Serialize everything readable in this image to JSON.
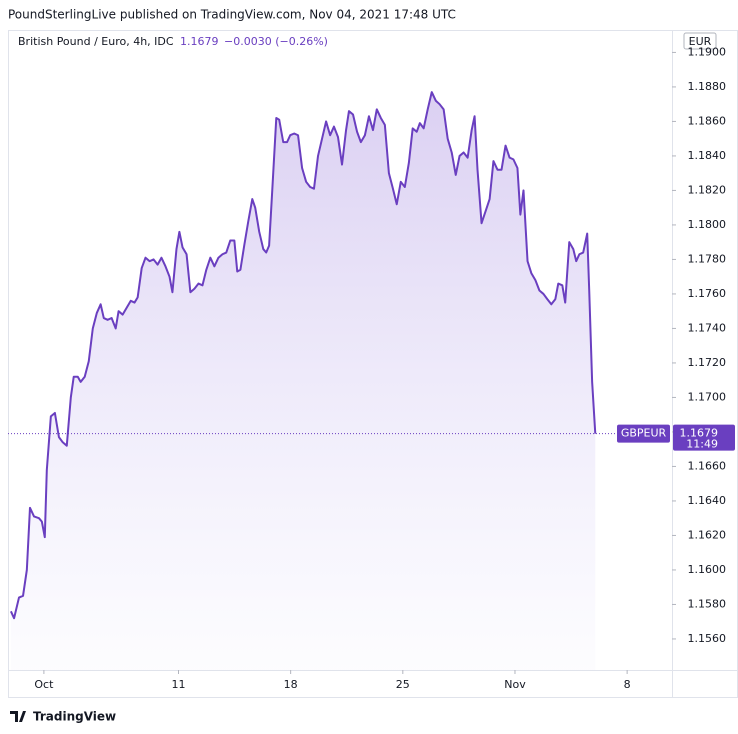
{
  "header": {
    "published": "PoundSterlingLive published on TradingView.com, Nov 04, 2021 17:48 UTC"
  },
  "chart_data": {
    "type": "line",
    "title": "British Pound / Euro, 4h, IDC",
    "change_label": "−0.0030 (−0.26%)",
    "y_label": "EUR",
    "countdown": "11:49",
    "x": [
      -1.47,
      -1.33,
      -1.11,
      -0.93,
      -0.76,
      -0.62,
      -0.44,
      -0.22,
      -0.09,
      0.04,
      0.13,
      0.31,
      0.49,
      0.67,
      0.84,
      1.02,
      1.2,
      1.33,
      1.51,
      1.64,
      1.82,
      2.0,
      2.18,
      2.36,
      2.53,
      2.67,
      2.84,
      3.02,
      3.2,
      3.33,
      3.51,
      3.69,
      3.87,
      4.04,
      4.18,
      4.36,
      4.53,
      4.71,
      4.89,
      5.07,
      5.24,
      5.42,
      5.6,
      5.73,
      5.91,
      6.04,
      6.18,
      6.36,
      6.53,
      6.71,
      6.89,
      7.07,
      7.24,
      7.42,
      7.6,
      7.78,
      7.96,
      8.13,
      8.31,
      8.49,
      8.62,
      8.76,
      8.93,
      9.11,
      9.29,
      9.42,
      9.6,
      9.78,
      9.91,
      10.04,
      10.18,
      10.36,
      10.49,
      10.67,
      10.84,
      10.98,
      11.16,
      11.33,
      11.51,
      11.69,
      11.87,
      12.04,
      12.22,
      12.4,
      12.58,
      12.76,
      12.93,
      13.11,
      13.29,
      13.47,
      13.6,
      13.78,
      13.96,
      14.13,
      14.31,
      14.49,
      14.67,
      14.84,
      15.02,
      15.2,
      15.38,
      15.56,
      15.73,
      15.91,
      16.09,
      16.27,
      16.44,
      16.62,
      16.76,
      16.93,
      17.11,
      17.29,
      17.47,
      17.64,
      17.82,
      18.0,
      18.18,
      18.36,
      18.53,
      18.71,
      18.89,
      19.07,
      19.2,
      19.33,
      19.51,
      19.69,
      19.87,
      20.04,
      20.22,
      20.4,
      20.58,
      20.76,
      20.93,
      21.11,
      21.24,
      21.38,
      21.56,
      21.73,
      21.91,
      22.09,
      22.27,
      22.44,
      22.62,
      22.8,
      22.93,
      23.11,
      23.24,
      23.42,
      23.6,
      23.73,
      23.87,
      24.04,
      24.22,
      24.31,
      24.44,
      24.58
    ],
    "series": [
      {
        "name": "GBPEUR",
        "color": "#6a3fc0",
        "values": [
          1.1576,
          1.1572,
          1.1584,
          1.1585,
          1.16,
          1.1636,
          1.1631,
          1.163,
          1.1628,
          1.1619,
          1.1658,
          1.1689,
          1.1691,
          1.1677,
          1.1674,
          1.1672,
          1.17,
          1.1712,
          1.1712,
          1.1709,
          1.1712,
          1.1721,
          1.174,
          1.1749,
          1.1754,
          1.1746,
          1.1745,
          1.1746,
          1.174,
          1.175,
          1.1748,
          1.1752,
          1.1756,
          1.1755,
          1.1758,
          1.1775,
          1.1781,
          1.1779,
          1.178,
          1.1777,
          1.1781,
          1.1776,
          1.177,
          1.1761,
          1.1786,
          1.1796,
          1.1787,
          1.1783,
          1.1761,
          1.1763,
          1.1766,
          1.1765,
          1.1774,
          1.1781,
          1.1776,
          1.1781,
          1.1783,
          1.1784,
          1.1791,
          1.1791,
          1.1773,
          1.1774,
          1.1788,
          1.1802,
          1.1815,
          1.181,
          1.1796,
          1.1786,
          1.1784,
          1.1788,
          1.182,
          1.1862,
          1.1861,
          1.1848,
          1.1848,
          1.1852,
          1.1853,
          1.1852,
          1.1833,
          1.1825,
          1.1822,
          1.1821,
          1.184,
          1.185,
          1.186,
          1.1852,
          1.1857,
          1.1851,
          1.1835,
          1.1855,
          1.1866,
          1.1864,
          1.1854,
          1.1848,
          1.1852,
          1.1863,
          1.1855,
          1.1867,
          1.1862,
          1.1858,
          1.183,
          1.1821,
          1.1812,
          1.1825,
          1.1822,
          1.1836,
          1.1856,
          1.1854,
          1.1859,
          1.1856,
          1.1867,
          1.1877,
          1.1872,
          1.187,
          1.1867,
          1.185,
          1.1842,
          1.1829,
          1.184,
          1.1842,
          1.1839,
          1.1855,
          1.1863,
          1.1832,
          1.1801,
          1.1808,
          1.1815,
          1.1837,
          1.1832,
          1.1832,
          1.1846,
          1.1839,
          1.1838,
          1.1833,
          1.1806,
          1.182,
          1.1779,
          1.1772,
          1.1768,
          1.1762,
          1.176,
          1.1757,
          1.1754,
          1.1757,
          1.1766,
          1.1765,
          1.1755,
          1.179,
          1.1786,
          1.1779,
          1.1783,
          1.1784,
          1.1795,
          1.1762,
          1.1709,
          1.1679
        ]
      }
    ],
    "xlim": [
      -1.6,
      28
    ],
    "xticks": [
      {
        "value": 0,
        "label": "Oct"
      },
      {
        "value": 6,
        "label": "11"
      },
      {
        "value": 11,
        "label": "18"
      },
      {
        "value": 16,
        "label": "25"
      },
      {
        "value": 21,
        "label": "Nov"
      },
      {
        "value": 26,
        "label": "8"
      }
    ],
    "ylim": [
      1.1542,
      1.1913
    ],
    "yticks": [
      {
        "value": 1.156,
        "label": "1.1560"
      },
      {
        "value": 1.158,
        "label": "1.1580"
      },
      {
        "value": 1.16,
        "label": "1.1600"
      },
      {
        "value": 1.162,
        "label": "1.1620"
      },
      {
        "value": 1.164,
        "label": "1.1640"
      },
      {
        "value": 1.166,
        "label": "1.1660"
      },
      {
        "value": 1.168,
        "label": "1.1680"
      },
      {
        "value": 1.17,
        "label": "1.1700"
      },
      {
        "value": 1.172,
        "label": "1.1720"
      },
      {
        "value": 1.174,
        "label": "1.1740"
      },
      {
        "value": 1.176,
        "label": "1.1760"
      },
      {
        "value": 1.178,
        "label": "1.1780"
      },
      {
        "value": 1.18,
        "label": "1.1800"
      },
      {
        "value": 1.182,
        "label": "1.1820"
      },
      {
        "value": 1.184,
        "label": "1.1840"
      },
      {
        "value": 1.186,
        "label": "1.1860"
      },
      {
        "value": 1.188,
        "label": "1.1880"
      },
      {
        "value": 1.19,
        "label": "1.1900"
      }
    ],
    "grid": false
  },
  "footer": {
    "brand": "TradingView"
  }
}
